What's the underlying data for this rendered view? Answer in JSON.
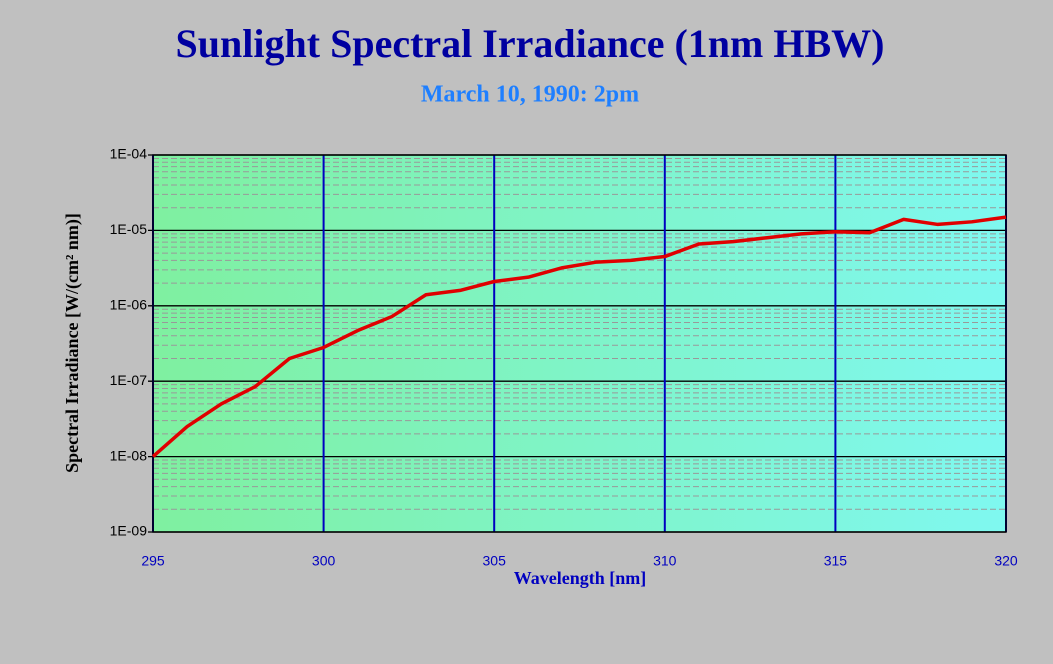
{
  "chart_data": {
    "type": "line",
    "title": "Sunlight Spectral Irradiance (1nm HBW)",
    "subtitle": "March 10, 1990: 2pm",
    "x_label": "Wavelength [nm]",
    "y_label": "Spectral Irradiance [W/(cm² nm)]",
    "x": [
      295,
      296,
      297,
      298,
      299,
      300,
      301,
      302,
      303,
      304,
      305,
      306,
      307,
      308,
      309,
      310,
      311,
      312,
      313,
      314,
      315,
      316,
      317,
      318,
      319,
      320
    ],
    "values": [
      1e-08,
      2.5e-08,
      5e-08,
      8.5e-08,
      2e-07,
      2.8e-07,
      4.7e-07,
      7.2e-07,
      1.4e-06,
      1.6e-06,
      2.1e-06,
      2.4e-06,
      3.2e-06,
      3.8e-06,
      4e-06,
      4.5e-06,
      6.6e-06,
      7.1e-06,
      8e-06,
      9e-06,
      9.6e-06,
      9.3e-06,
      1.4e-05,
      1.2e-05,
      1.3e-05,
      1.5e-05
    ],
    "color": "#e00000",
    "xlim": [
      295,
      320
    ],
    "xticks": [
      295,
      300,
      305,
      310,
      315,
      320
    ],
    "ylim": [
      1e-09,
      0.0001
    ],
    "yticks": [
      {
        "value": 1e-09,
        "label": "1E-09"
      },
      {
        "value": 1e-08,
        "label": "1E-08"
      },
      {
        "value": 1e-07,
        "label": "1E-07"
      },
      {
        "value": 1e-06,
        "label": "1E-06"
      },
      {
        "value": 1e-05,
        "label": "1E-05"
      },
      {
        "value": 0.0001,
        "label": "1E-04"
      }
    ],
    "y_log": true,
    "grid": true
  }
}
